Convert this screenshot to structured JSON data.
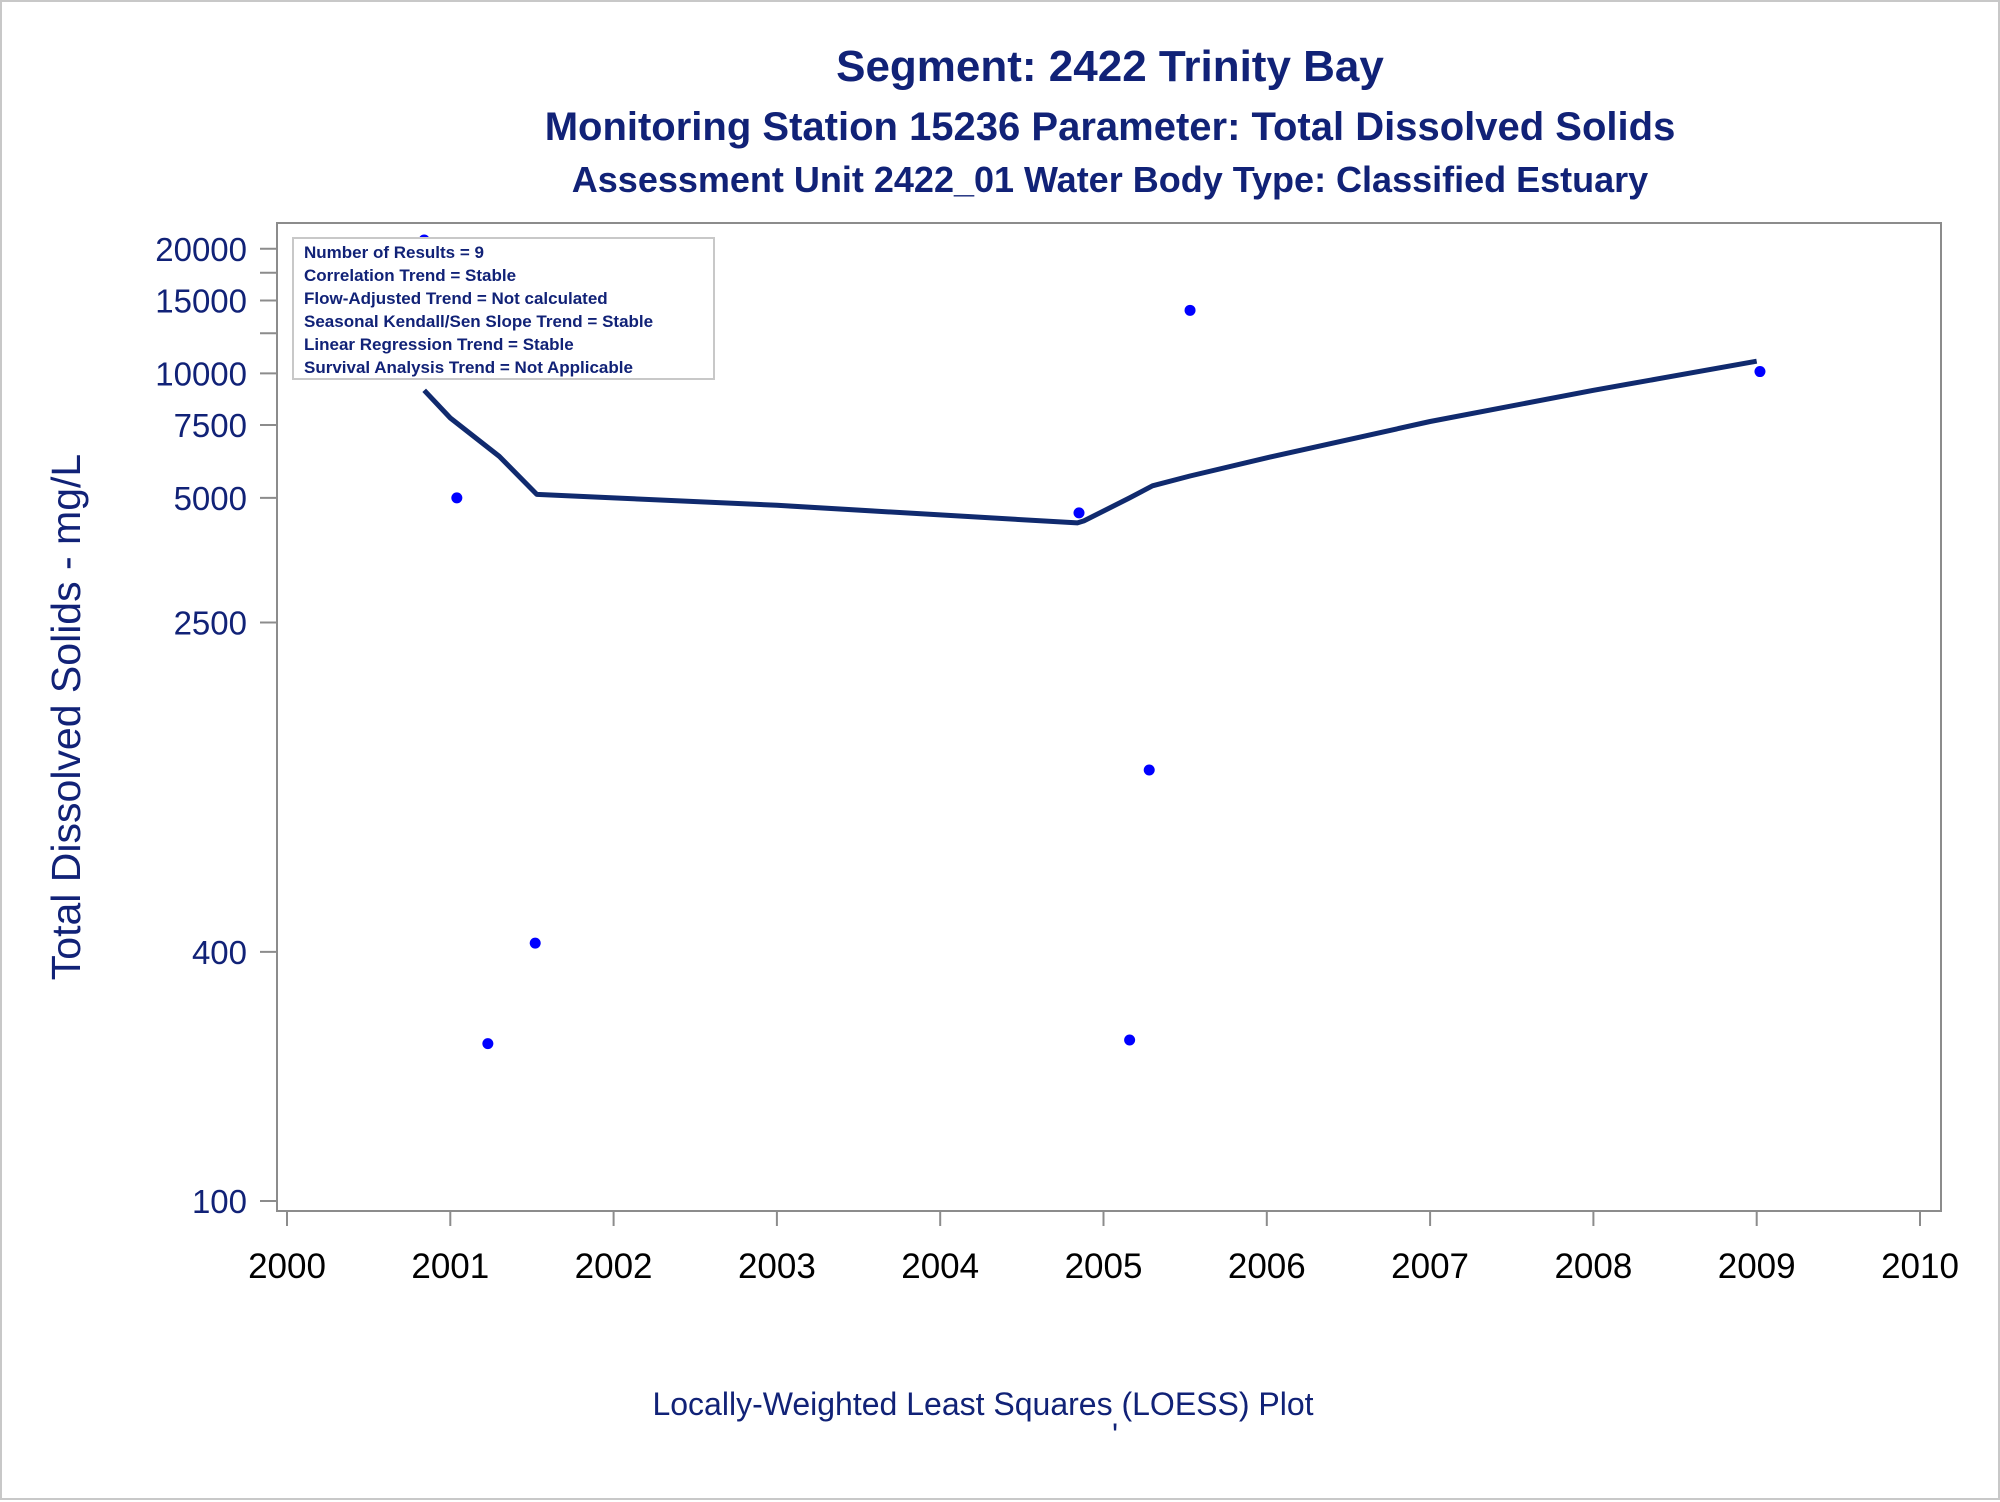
{
  "chart_data": {
    "type": "scatter",
    "title": "Segment: 2422  Trinity Bay",
    "subtitle": "Monitoring Station 15236 Parameter: Total Dissolved Solids",
    "subtitle2": "Assessment Unit 2422_01   Water Body Type: Classified Estuary",
    "ylabel": "Total Dissolved Solids - mg/L",
    "xlabel": "Locally-Weighted Least Squares (LOESS) Plot",
    "footnote_mark": "'",
    "yscale": "log",
    "xlim": [
      2000,
      2010
    ],
    "ylim": [
      100,
      21000
    ],
    "x_ticks": [
      "2000",
      "2001",
      "2002",
      "2003",
      "2004",
      "2005",
      "2006",
      "2007",
      "2008",
      "2009",
      "2010"
    ],
    "y_ticks": [
      {
        "value": 100,
        "label": "100"
      },
      {
        "value": 400,
        "label": "400"
      },
      {
        "value": 2500,
        "label": "2500"
      },
      {
        "value": 5000,
        "label": "5000"
      },
      {
        "value": 7500,
        "label": "7500"
      },
      {
        "value": 10000,
        "label": "10000"
      },
      {
        "value": 15000,
        "label": "15000"
      },
      {
        "value": 20000,
        "label": "20000"
      }
    ],
    "y_minor_ticks": [
      12500,
      17500
    ],
    "stats_box": {
      "position": "top-left",
      "lines": [
        "Number of Results = 9",
        "Correlation Trend = Stable",
        "Flow-Adjusted Trend = Not calculated",
        "Seasonal Kendall/Sen Slope Trend = Stable",
        "Linear Regression Trend = Stable",
        "Survival Analysis Trend = Not Applicable"
      ]
    },
    "series": [
      {
        "kind": "points",
        "color": "#0000ff",
        "points": [
          {
            "x": 2000.84,
            "y": 21000
          },
          {
            "x": 2001.04,
            "y": 5000
          },
          {
            "x": 2001.23,
            "y": 240
          },
          {
            "x": 2001.52,
            "y": 420
          },
          {
            "x": 2004.85,
            "y": 4600
          },
          {
            "x": 2005.16,
            "y": 245
          },
          {
            "x": 2005.28,
            "y": 1100
          },
          {
            "x": 2005.53,
            "y": 14200
          },
          {
            "x": 2009.02,
            "y": 10100
          }
        ]
      },
      {
        "kind": "loess",
        "color": "#102a6e",
        "points": [
          {
            "x": 2000.84,
            "y": 9100
          },
          {
            "x": 2001.0,
            "y": 7800
          },
          {
            "x": 2001.3,
            "y": 6300
          },
          {
            "x": 2001.53,
            "y": 5100
          },
          {
            "x": 2002.0,
            "y": 5000
          },
          {
            "x": 2003.0,
            "y": 4800
          },
          {
            "x": 2004.0,
            "y": 4550
          },
          {
            "x": 2004.84,
            "y": 4350
          },
          {
            "x": 2004.88,
            "y": 4400
          },
          {
            "x": 2005.16,
            "y": 5000
          },
          {
            "x": 2005.3,
            "y": 5350
          },
          {
            "x": 2005.53,
            "y": 5650
          },
          {
            "x": 2006.0,
            "y": 6250
          },
          {
            "x": 2007.0,
            "y": 7650
          },
          {
            "x": 2008.0,
            "y": 9100
          },
          {
            "x": 2009.0,
            "y": 10700
          }
        ]
      }
    ],
    "grid": false
  }
}
